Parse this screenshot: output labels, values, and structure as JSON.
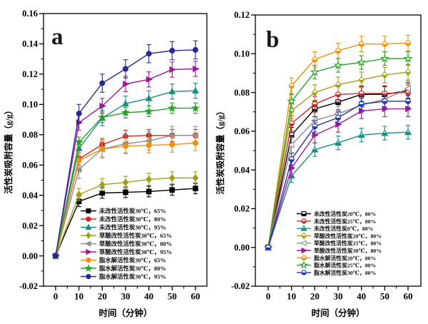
{
  "figure": {
    "background": "#ffffff",
    "axis_color": "#000000",
    "panel_letters": [
      "a",
      "b"
    ]
  },
  "chart_data": [
    {
      "type": "line",
      "panel_label": "a",
      "xlabel": "时间（分钟）",
      "ylabel": "活性炭吸附容量（g/g）",
      "x": [
        0,
        10,
        20,
        30,
        40,
        50,
        60
      ],
      "xticks": [
        0,
        10,
        20,
        30,
        40,
        50,
        60
      ],
      "ylim": [
        -0.02,
        0.16
      ],
      "yticks": [
        -0.02,
        0.0,
        0.02,
        0.04,
        0.06,
        0.08,
        0.1,
        0.12,
        0.14,
        0.16
      ],
      "grid": false,
      "legend_position": "inside-bottom-left",
      "series": [
        {
          "name": "未改性活性炭30℃，65%",
          "color": "#000000",
          "marker": "square",
          "fill": "filled",
          "err": 0.0035,
          "values": [
            0,
            0.036,
            0.0415,
            0.042,
            0.0425,
            0.0435,
            0.0445
          ]
        },
        {
          "name": "未改性活性炭30℃，80%",
          "color": "#d02824",
          "marker": "circle",
          "fill": "filled",
          "err": 0.004,
          "values": [
            0,
            0.064,
            0.0735,
            0.079,
            0.0795,
            0.0795,
            0.0795
          ]
        },
        {
          "name": "未改性活性炭30℃，95%",
          "color": "#1b8e84",
          "marker": "triangle-up",
          "fill": "filled",
          "err": 0.005,
          "values": [
            0,
            0.071,
            0.091,
            0.1005,
            0.104,
            0.1085,
            0.109
          ]
        },
        {
          "name": "草酸改性活性炭30℃，65%",
          "color": "#a3a018",
          "marker": "diamond",
          "fill": "filled",
          "err": 0.004,
          "values": [
            0,
            0.0405,
            0.047,
            0.0485,
            0.0505,
            0.0515,
            0.0515
          ]
        },
        {
          "name": "草酸改性活性炭30℃，80%",
          "color": "#8f8f8f",
          "marker": "triangle-left",
          "fill": "filled",
          "err": 0.006,
          "values": [
            0,
            0.057,
            0.0705,
            0.074,
            0.076,
            0.0795,
            0.0795
          ]
        },
        {
          "name": "草酸改性活性炭30℃，95%",
          "color": "#a0189a",
          "marker": "triangle-right",
          "fill": "filled",
          "err": 0.005,
          "values": [
            0,
            0.088,
            0.099,
            0.1135,
            0.1165,
            0.123,
            0.1235
          ]
        },
        {
          "name": "脂水解活性炭30℃，65%",
          "color": "#f2900f",
          "marker": "circle",
          "fill": "filled",
          "err": 0.005,
          "values": [
            0,
            0.063,
            0.0705,
            0.0725,
            0.073,
            0.0735,
            0.0745
          ]
        },
        {
          "name": "脂水解活性炭30℃，80%",
          "color": "#2aa02a",
          "marker": "star",
          "fill": "filled",
          "err": 0.0035,
          "values": [
            0,
            0.075,
            0.0915,
            0.0945,
            0.0955,
            0.0975,
            0.0975
          ]
        },
        {
          "name": "脂水解活性炭30℃，95%",
          "color": "#27279a",
          "marker": "circle",
          "fill": "filled",
          "err": 0.006,
          "values": [
            0,
            0.094,
            0.114,
            0.1235,
            0.1335,
            0.1355,
            0.136
          ]
        }
      ]
    },
    {
      "type": "line",
      "panel_label": "b",
      "xlabel": "时间（分钟）",
      "ylabel": "活性炭吸附容量（g/g）",
      "x": [
        0,
        10,
        20,
        30,
        40,
        50,
        60
      ],
      "xticks": [
        0,
        10,
        20,
        30,
        40,
        50,
        60
      ],
      "ylim": [
        -0.02,
        0.12
      ],
      "yticks": [
        -0.02,
        0.0,
        0.02,
        0.04,
        0.06,
        0.08,
        0.1,
        0.12
      ],
      "grid": false,
      "legend_position": "inside-bottom-left",
      "series": [
        {
          "name": "未改性活性炭20℃，80%",
          "color": "#000000",
          "marker": "square",
          "fill": "half",
          "err": 0.004,
          "values": [
            0,
            0.058,
            0.0715,
            0.075,
            0.079,
            0.079,
            0.081
          ]
        },
        {
          "name": "未改性活性炭25℃，80%",
          "color": "#d02824",
          "marker": "circle",
          "fill": "half",
          "err": 0.004,
          "values": [
            0,
            0.064,
            0.074,
            0.079,
            0.0795,
            0.0795,
            0.08
          ]
        },
        {
          "name": "未改性活性炭0℃，80%",
          "color": "#1b8e84",
          "marker": "triangle-up",
          "fill": "half",
          "err": 0.0035,
          "values": [
            0,
            0.037,
            0.0505,
            0.054,
            0.058,
            0.059,
            0.0595
          ]
        },
        {
          "name": "草酸改性活性炭20℃，80%",
          "color": "#a3a018",
          "marker": "diamond",
          "fill": "half",
          "err": 0.004,
          "values": [
            0,
            0.0705,
            0.08,
            0.084,
            0.0865,
            0.089,
            0.0905
          ]
        },
        {
          "name": "草酸改性活性炭25℃，80%",
          "color": "#8f8f8f",
          "marker": "triangle-left",
          "fill": "open",
          "err": 0.004,
          "values": [
            0,
            0.053,
            0.0655,
            0.069,
            0.0735,
            0.0765,
            0.082
          ]
        },
        {
          "name": "草酸改性活性炭30℃，80%",
          "color": "#a0189a",
          "marker": "triangle-right",
          "fill": "filled",
          "err": 0.004,
          "values": [
            0,
            0.041,
            0.058,
            0.0635,
            0.0705,
            0.0715,
            0.0715
          ]
        },
        {
          "name": "脂水解活性炭20℃，80%",
          "color": "#f2900f",
          "marker": "circle",
          "fill": "half",
          "err": 0.004,
          "values": [
            0,
            0.0835,
            0.097,
            0.1015,
            0.105,
            0.105,
            0.1055
          ]
        },
        {
          "name": "脂水解活性炭25℃，80%",
          "color": "#2aa02a",
          "marker": "star",
          "fill": "open",
          "err": 0.0035,
          "values": [
            0,
            0.0755,
            0.0905,
            0.094,
            0.0955,
            0.0975,
            0.0975
          ]
        },
        {
          "name": "脂水解活性炭30℃，80%",
          "color": "#2433b5",
          "marker": "circle",
          "fill": "half",
          "err": 0.003,
          "values": [
            0,
            0.0455,
            0.0625,
            0.067,
            0.074,
            0.0755,
            0.0755
          ]
        }
      ]
    }
  ]
}
